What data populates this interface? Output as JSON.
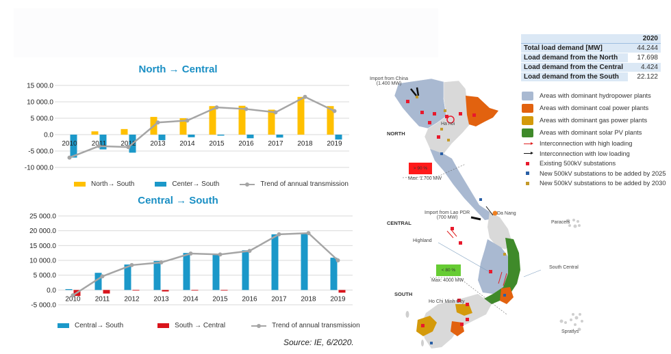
{
  "chart_data": [
    {
      "type": "bar",
      "title": "North → Central",
      "categories": [
        "2010",
        "2011",
        "2012",
        "2013",
        "2014",
        "2015",
        "2016",
        "2017",
        "2018",
        "2019"
      ],
      "series": [
        {
          "name": "North→ South",
          "kind": "bar",
          "color": "#ffc000",
          "values": [
            0,
            1000,
            1700,
            5400,
            5000,
            8700,
            8800,
            7600,
            11500,
            8700
          ]
        },
        {
          "name": "Center→ South",
          "kind": "bar",
          "color": "#1b98c9",
          "values": [
            -7000,
            -4500,
            -5500,
            -1700,
            -800,
            -300,
            -1100,
            -900,
            0,
            -1500
          ]
        },
        {
          "name": "Trend of annual transmission",
          "kind": "line",
          "color": "#a5a5a5",
          "values": [
            -7000,
            -3500,
            -3800,
            3700,
            4300,
            8300,
            7800,
            6800,
            11500,
            7200
          ]
        }
      ],
      "yticks": [
        "15 000.0",
        "10 000.0",
        "5 000.0",
        "0.0",
        "-5 000.0",
        "-10 000.0"
      ],
      "ylim": [
        -10000,
        15000
      ],
      "xlabel": "",
      "ylabel": "",
      "grid": true,
      "legend_position": "bottom"
    },
    {
      "type": "bar",
      "title": "Central → South",
      "categories": [
        "2010",
        "2011",
        "2012",
        "2013",
        "2014",
        "2015",
        "2016",
        "2017",
        "2018",
        "2019"
      ],
      "series": [
        {
          "name": "Central→ South",
          "kind": "bar",
          "color": "#1b98c9",
          "values": [
            300,
            5800,
            8600,
            9800,
            12500,
            12000,
            13400,
            18800,
            19200,
            10900
          ]
        },
        {
          "name": "South → Central",
          "kind": "bar",
          "color": "#d9141b",
          "values": [
            -2000,
            -1200,
            -200,
            -500,
            -200,
            -200,
            0,
            0,
            0,
            -900
          ]
        },
        {
          "name": "Trend of annual transmission",
          "kind": "line",
          "color": "#a5a5a5",
          "values": [
            -1800,
            4600,
            8400,
            9300,
            12300,
            12000,
            13200,
            18800,
            19200,
            10000
          ]
        }
      ],
      "yticks": [
        "25 000.0",
        "20 000.0",
        "15 000.0",
        "10 000.0",
        "5 000.0",
        "0.0",
        "-5 000.0"
      ],
      "ylim": [
        -5000,
        25000
      ],
      "xlabel": "",
      "ylabel": "",
      "grid": true,
      "legend_position": "bottom"
    }
  ],
  "charts": {
    "north_central": {
      "title": "North → Central",
      "legend": [
        "North→ South",
        "Center→ South",
        "Trend of annual transmission"
      ]
    },
    "central_south": {
      "title": "Central → South",
      "legend": [
        "Central→ South",
        "South → Central",
        "Trend of annual transmission"
      ]
    }
  },
  "source": "Source: IE, 6/2020.",
  "load_table": {
    "year": "2020",
    "rows": [
      {
        "label": "Total load demand [MW]",
        "value": "44.244"
      },
      {
        "label": "Load demand from the North",
        "value": "17.698"
      },
      {
        "label": "Load demand from the Central",
        "value": "4.424"
      },
      {
        "label": "Load demand from the South",
        "value": "22.122"
      }
    ]
  },
  "map_legend": {
    "items": [
      {
        "label": "Areas with dominant hydropower plants",
        "color": "#a9b9d1"
      },
      {
        "label": "Areas with dominant coal power plants",
        "color": "#e2620f"
      },
      {
        "label": "Areas with dominant gas power plants",
        "color": "#d49a0b"
      },
      {
        "label": "Areas with dominant solar PV plants",
        "color": "#3f8a2a"
      },
      {
        "label": "Interconnection with high loading",
        "color": "#e02020"
      },
      {
        "label": "Interconnection with low loading",
        "color": "#111111"
      },
      {
        "label": "Existing 500kV substations",
        "color": "#e8192c"
      },
      {
        "label": "New 500kV substations to be added by 2025",
        "color": "#2a5fa5"
      },
      {
        "label": "New 500kV substations to be added by 2030",
        "color": "#c49a2a"
      }
    ]
  },
  "map": {
    "import_china": "Import from China",
    "import_china_mw": "(1.400 MW)",
    "region_north": "NORTH",
    "region_central": "CENTRAL",
    "region_south": "SOUTH",
    "city_hanoi": "Ha noi",
    "city_danang": "Da Nang",
    "city_hcmc": "Ho Chi Minh City",
    "import_lao": "Import from Lao PDR",
    "import_lao_mw": "(700 MW)",
    "highland": "Highland",
    "south_central": "South Central",
    "paracels": "Paracels",
    "spratlys": "Spratlys",
    "badge_high": "> 90 %",
    "badge_high_max": "Max:  1.700 MW",
    "badge_low": "< 80 %",
    "badge_low_max": "Max:  4000 MW"
  }
}
